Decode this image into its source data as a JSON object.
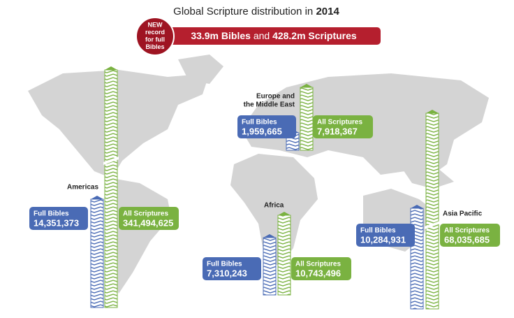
{
  "header": {
    "title": "Global Scripture distribution in",
    "title_year": "2014",
    "badge_lines": [
      "NEW",
      "record",
      "for full",
      "Bibles"
    ],
    "banner": {
      "bibles": "33.9m Bibles",
      "joiner": "and",
      "scriptures": "428.2m Scriptures"
    }
  },
  "labels": {
    "full_bibles": "Full Bibles",
    "all_scriptures": "All Scriptures"
  },
  "regions": [
    {
      "name_lines": [
        "Americas"
      ],
      "full_bibles": "14,351,373",
      "all_scriptures": "341,494,625"
    },
    {
      "name_lines": [
        "Europe and",
        "the Middle East"
      ],
      "full_bibles": "1,959,665",
      "all_scriptures": "7,918,367"
    },
    {
      "name_lines": [
        "Africa"
      ],
      "full_bibles": "7,310,243",
      "all_scriptures": "10,743,496"
    },
    {
      "name_lines": [
        "Asia Pacific"
      ],
      "full_bibles": "10,284,931",
      "all_scriptures": "68,035,685"
    }
  ]
}
